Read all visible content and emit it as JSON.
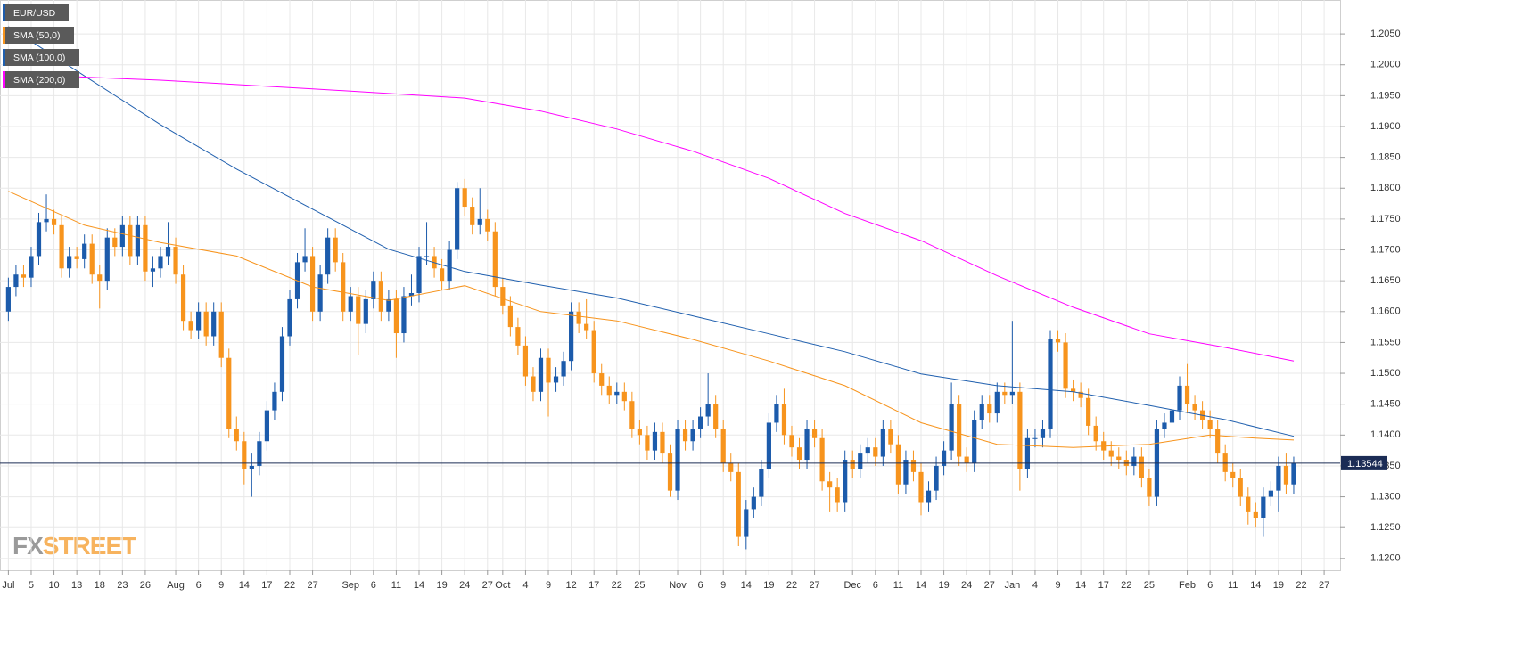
{
  "chart_data": {
    "type": "candlestick",
    "xlim": [
      -1.1,
      175.1
    ],
    "ylim": [
      1.1181,
      1.2105
    ],
    "grid": true,
    "legend": "top-left",
    "xticks": [
      {
        "value": 0,
        "label": "Jul"
      },
      {
        "value": 3,
        "label": "5"
      },
      {
        "value": 6,
        "label": "10"
      },
      {
        "value": 9,
        "label": "13"
      },
      {
        "value": 12,
        "label": "18"
      },
      {
        "value": 15,
        "label": "23"
      },
      {
        "value": 18,
        "label": "26"
      },
      {
        "value": 22,
        "label": "Aug"
      },
      {
        "value": 25,
        "label": "6"
      },
      {
        "value": 28,
        "label": "9"
      },
      {
        "value": 31,
        "label": "14"
      },
      {
        "value": 34,
        "label": "17"
      },
      {
        "value": 37,
        "label": "22"
      },
      {
        "value": 40,
        "label": "27"
      },
      {
        "value": 45,
        "label": "Sep"
      },
      {
        "value": 48,
        "label": "6"
      },
      {
        "value": 51,
        "label": "11"
      },
      {
        "value": 54,
        "label": "14"
      },
      {
        "value": 57,
        "label": "19"
      },
      {
        "value": 60,
        "label": "24"
      },
      {
        "value": 63,
        "label": "27"
      },
      {
        "value": 65,
        "label": "Oct"
      },
      {
        "value": 68,
        "label": "4"
      },
      {
        "value": 71,
        "label": "9"
      },
      {
        "value": 74,
        "label": "12"
      },
      {
        "value": 77,
        "label": "17"
      },
      {
        "value": 80,
        "label": "22"
      },
      {
        "value": 83,
        "label": "25"
      },
      {
        "value": 88,
        "label": "Nov"
      },
      {
        "value": 91,
        "label": "6"
      },
      {
        "value": 94,
        "label": "9"
      },
      {
        "value": 97,
        "label": "14"
      },
      {
        "value": 100,
        "label": "19"
      },
      {
        "value": 103,
        "label": "22"
      },
      {
        "value": 106,
        "label": "27"
      },
      {
        "value": 111,
        "label": "Dec"
      },
      {
        "value": 114,
        "label": "6"
      },
      {
        "value": 117,
        "label": "11"
      },
      {
        "value": 120,
        "label": "14"
      },
      {
        "value": 123,
        "label": "19"
      },
      {
        "value": 126,
        "label": "24"
      },
      {
        "value": 129,
        "label": "27"
      },
      {
        "value": 132,
        "label": "Jan"
      },
      {
        "value": 135,
        "label": "4"
      },
      {
        "value": 138,
        "label": "9"
      },
      {
        "value": 141,
        "label": "14"
      },
      {
        "value": 144,
        "label": "17"
      },
      {
        "value": 147,
        "label": "22"
      },
      {
        "value": 150,
        "label": "25"
      },
      {
        "value": 155,
        "label": "Feb"
      },
      {
        "value": 158,
        "label": "6"
      },
      {
        "value": 161,
        "label": "11"
      },
      {
        "value": 164,
        "label": "14"
      },
      {
        "value": 167,
        "label": "19"
      },
      {
        "value": 170,
        "label": "22"
      },
      {
        "value": 173,
        "label": "27"
      }
    ],
    "yticks": [
      {
        "value": 1.12,
        "label": "1.1200"
      },
      {
        "value": 1.125,
        "label": "1.1250"
      },
      {
        "value": 1.13,
        "label": "1.1300"
      },
      {
        "value": 1.135,
        "label": "1.1350"
      },
      {
        "value": 1.14,
        "label": "1.1400"
      },
      {
        "value": 1.145,
        "label": "1.1450"
      },
      {
        "value": 1.15,
        "label": "1.1500"
      },
      {
        "value": 1.155,
        "label": "1.1550"
      },
      {
        "value": 1.16,
        "label": "1.1600"
      },
      {
        "value": 1.165,
        "label": "1.1650"
      },
      {
        "value": 1.17,
        "label": "1.1700"
      },
      {
        "value": 1.175,
        "label": "1.1750"
      },
      {
        "value": 1.18,
        "label": "1.1800"
      },
      {
        "value": 1.185,
        "label": "1.1850"
      },
      {
        "value": 1.19,
        "label": "1.1900"
      },
      {
        "value": 1.195,
        "label": "1.1950"
      },
      {
        "value": 1.2,
        "label": "1.2000"
      },
      {
        "value": 1.205,
        "label": "1.2050"
      }
    ],
    "last_price": 1.13544,
    "watermark": [
      "FX",
      "STREET"
    ],
    "series": [
      {
        "name": "EUR/USD",
        "type": "candlestick",
        "up_color": "#1c5bab",
        "down_color": "#f7941d",
        "open": [
          1.16,
          1.164,
          1.166,
          1.1655,
          1.169,
          1.1745,
          1.175,
          1.174,
          1.167,
          1.169,
          1.1685,
          1.171,
          1.166,
          1.165,
          1.172,
          1.1705,
          1.174,
          1.169,
          1.174,
          1.1665,
          1.167,
          1.169,
          1.1705,
          1.166,
          1.1585,
          1.157,
          1.16,
          1.156,
          1.16,
          1.1525,
          1.141,
          1.139,
          1.1345,
          1.135,
          1.139,
          1.144,
          1.147,
          1.156,
          1.162,
          1.168,
          1.169,
          1.16,
          1.166,
          1.172,
          1.168,
          1.16,
          1.1625,
          1.158,
          1.162,
          1.165,
          1.16,
          1.162,
          1.1565,
          1.1625,
          1.163,
          1.169,
          1.169,
          1.167,
          1.165,
          1.17,
          1.18,
          1.177,
          1.174,
          1.175,
          1.173,
          1.164,
          1.161,
          1.1575,
          1.1545,
          1.1495,
          1.147,
          1.1525,
          1.1485,
          1.1495,
          1.152,
          1.16,
          1.158,
          1.157,
          1.15,
          1.148,
          1.1465,
          1.147,
          1.1455,
          1.141,
          1.14,
          1.1375,
          1.1405,
          1.137,
          1.131,
          1.141,
          1.139,
          1.141,
          1.143,
          1.145,
          1.141,
          1.1355,
          1.134,
          1.1235,
          1.128,
          1.13,
          1.1345,
          1.142,
          1.145,
          1.14,
          1.138,
          1.136,
          1.141,
          1.1395,
          1.1325,
          1.1315,
          1.129,
          1.136,
          1.1345,
          1.137,
          1.138,
          1.1365,
          1.141,
          1.1385,
          1.132,
          1.136,
          1.134,
          1.129,
          1.131,
          1.135,
          1.1375,
          1.145,
          1.1365,
          1.1355,
          1.1425,
          1.145,
          1.1435,
          1.147,
          1.1465,
          1.147,
          1.1345,
          1.1395,
          1.1395,
          1.141,
          1.1555,
          1.155,
          1.1475,
          1.147,
          1.146,
          1.1415,
          1.139,
          1.1375,
          1.1365,
          1.136,
          1.135,
          1.1365,
          1.133,
          1.13,
          1.141,
          1.142,
          1.144,
          1.148,
          1.145,
          1.144,
          1.1425,
          1.141,
          1.137,
          1.134,
          1.133,
          1.13,
          1.1275,
          1.1265,
          1.13,
          1.131,
          1.135,
          1.132
        ],
        "high": [
          1.1655,
          1.1675,
          1.1675,
          1.1705,
          1.176,
          1.179,
          1.1765,
          1.1755,
          1.1705,
          1.1705,
          1.1725,
          1.1725,
          1.1675,
          1.1735,
          1.1735,
          1.1755,
          1.1755,
          1.1755,
          1.1755,
          1.169,
          1.1705,
          1.1745,
          1.172,
          1.1675,
          1.16,
          1.1615,
          1.1615,
          1.1615,
          1.1615,
          1.154,
          1.143,
          1.1405,
          1.137,
          1.1405,
          1.1455,
          1.1485,
          1.1575,
          1.1635,
          1.1695,
          1.1735,
          1.1705,
          1.1675,
          1.1735,
          1.1735,
          1.1695,
          1.164,
          1.164,
          1.1635,
          1.1665,
          1.1665,
          1.1635,
          1.1635,
          1.164,
          1.166,
          1.1705,
          1.1745,
          1.1705,
          1.1685,
          1.1715,
          1.181,
          1.1815,
          1.1785,
          1.18,
          1.1765,
          1.1745,
          1.1655,
          1.1625,
          1.159,
          1.156,
          1.151,
          1.154,
          1.154,
          1.151,
          1.1535,
          1.1615,
          1.1615,
          1.162,
          1.1585,
          1.1515,
          1.1495,
          1.1485,
          1.1485,
          1.147,
          1.1425,
          1.1415,
          1.142,
          1.142,
          1.1385,
          1.1425,
          1.1425,
          1.1425,
          1.1445,
          1.15,
          1.1465,
          1.1425,
          1.137,
          1.1355,
          1.1295,
          1.1315,
          1.136,
          1.1435,
          1.1465,
          1.1475,
          1.1415,
          1.1395,
          1.1425,
          1.1425,
          1.141,
          1.134,
          1.133,
          1.1375,
          1.1375,
          1.1385,
          1.1395,
          1.1395,
          1.1425,
          1.1425,
          1.14,
          1.1375,
          1.1375,
          1.1355,
          1.1325,
          1.1365,
          1.139,
          1.1485,
          1.1465,
          1.138,
          1.144,
          1.1465,
          1.1465,
          1.1485,
          1.1485,
          1.1585,
          1.1485,
          1.141,
          1.141,
          1.1425,
          1.157,
          1.157,
          1.1565,
          1.149,
          1.1485,
          1.1475,
          1.143,
          1.1405,
          1.139,
          1.138,
          1.1375,
          1.138,
          1.138,
          1.1345,
          1.1425,
          1.1435,
          1.1455,
          1.1495,
          1.1515,
          1.1465,
          1.1455,
          1.144,
          1.1425,
          1.1385,
          1.1355,
          1.1345,
          1.1315,
          1.129,
          1.1315,
          1.1325,
          1.1365,
          1.137,
          1.1365
        ],
        "low": [
          1.1585,
          1.1625,
          1.164,
          1.164,
          1.1675,
          1.173,
          1.1725,
          1.1655,
          1.1655,
          1.167,
          1.167,
          1.1645,
          1.1605,
          1.1635,
          1.169,
          1.169,
          1.1675,
          1.1675,
          1.165,
          1.164,
          1.1655,
          1.1675,
          1.1645,
          1.157,
          1.1555,
          1.1555,
          1.1545,
          1.1545,
          1.151,
          1.1395,
          1.1375,
          1.132,
          1.13,
          1.1335,
          1.1375,
          1.1425,
          1.1455,
          1.1545,
          1.1605,
          1.1665,
          1.1585,
          1.1585,
          1.1645,
          1.1665,
          1.1585,
          1.1585,
          1.153,
          1.1565,
          1.1605,
          1.1585,
          1.1585,
          1.1525,
          1.155,
          1.161,
          1.1615,
          1.1675,
          1.1655,
          1.1635,
          1.1635,
          1.1685,
          1.1755,
          1.1725,
          1.1725,
          1.1715,
          1.1625,
          1.1595,
          1.156,
          1.153,
          1.148,
          1.1455,
          1.1455,
          1.143,
          1.147,
          1.148,
          1.1505,
          1.1565,
          1.1555,
          1.1485,
          1.1465,
          1.145,
          1.145,
          1.144,
          1.1395,
          1.1385,
          1.136,
          1.136,
          1.1355,
          1.13,
          1.1295,
          1.1375,
          1.1375,
          1.1395,
          1.1415,
          1.1395,
          1.134,
          1.1325,
          1.122,
          1.1215,
          1.1265,
          1.1285,
          1.133,
          1.1405,
          1.1385,
          1.1365,
          1.1345,
          1.1345,
          1.138,
          1.131,
          1.1275,
          1.1275,
          1.1275,
          1.133,
          1.133,
          1.1355,
          1.135,
          1.135,
          1.137,
          1.1305,
          1.1305,
          1.1325,
          1.127,
          1.1275,
          1.1295,
          1.1335,
          1.136,
          1.135,
          1.134,
          1.134,
          1.141,
          1.142,
          1.142,
          1.145,
          1.145,
          1.131,
          1.133,
          1.138,
          1.138,
          1.1395,
          1.1535,
          1.146,
          1.1455,
          1.1445,
          1.14,
          1.1375,
          1.136,
          1.135,
          1.1345,
          1.1335,
          1.1335,
          1.1315,
          1.1285,
          1.1285,
          1.1395,
          1.1405,
          1.1425,
          1.1435,
          1.1425,
          1.141,
          1.1395,
          1.1355,
          1.1325,
          1.1315,
          1.1285,
          1.1255,
          1.125,
          1.1235,
          1.1285,
          1.1275,
          1.1305,
          1.1305
        ],
        "close": [
          1.164,
          1.166,
          1.1655,
          1.169,
          1.1745,
          1.175,
          1.174,
          1.167,
          1.169,
          1.1685,
          1.171,
          1.166,
          1.165,
          1.172,
          1.1705,
          1.174,
          1.169,
          1.174,
          1.1665,
          1.167,
          1.169,
          1.1705,
          1.166,
          1.1585,
          1.157,
          1.16,
          1.156,
          1.16,
          1.1525,
          1.141,
          1.139,
          1.1345,
          1.135,
          1.139,
          1.144,
          1.147,
          1.156,
          1.162,
          1.168,
          1.169,
          1.16,
          1.166,
          1.172,
          1.168,
          1.16,
          1.1625,
          1.158,
          1.162,
          1.165,
          1.16,
          1.162,
          1.1565,
          1.1625,
          1.163,
          1.169,
          1.169,
          1.167,
          1.165,
          1.17,
          1.18,
          1.177,
          1.174,
          1.175,
          1.173,
          1.164,
          1.161,
          1.1575,
          1.1545,
          1.1495,
          1.147,
          1.1525,
          1.1485,
          1.1495,
          1.152,
          1.16,
          1.158,
          1.157,
          1.15,
          1.148,
          1.1465,
          1.147,
          1.1455,
          1.141,
          1.14,
          1.1375,
          1.1405,
          1.137,
          1.131,
          1.141,
          1.139,
          1.141,
          1.143,
          1.145,
          1.141,
          1.1355,
          1.134,
          1.1235,
          1.128,
          1.13,
          1.1345,
          1.142,
          1.145,
          1.14,
          1.138,
          1.136,
          1.141,
          1.1395,
          1.1325,
          1.1315,
          1.129,
          1.136,
          1.1345,
          1.137,
          1.138,
          1.1365,
          1.141,
          1.1385,
          1.132,
          1.136,
          1.134,
          1.129,
          1.131,
          1.135,
          1.1375,
          1.145,
          1.1365,
          1.1355,
          1.1425,
          1.145,
          1.1435,
          1.147,
          1.1465,
          1.147,
          1.1345,
          1.1395,
          1.1395,
          1.141,
          1.1555,
          1.155,
          1.1475,
          1.147,
          1.146,
          1.1415,
          1.139,
          1.1375,
          1.1365,
          1.136,
          1.135,
          1.1365,
          1.133,
          1.13,
          1.141,
          1.142,
          1.144,
          1.148,
          1.145,
          1.144,
          1.1425,
          1.141,
          1.137,
          1.134,
          1.133,
          1.13,
          1.1275,
          1.1265,
          1.13,
          1.131,
          1.135,
          1.132,
          1.13544
        ]
      },
      {
        "name": "SMA (50,0)",
        "type": "line",
        "color": "#f7941d",
        "x": [
          0,
          10,
          20,
          30,
          40,
          50,
          60,
          70,
          80,
          90,
          100,
          110,
          120,
          130,
          140,
          150,
          158,
          164,
          169
        ],
        "values": [
          1.1795,
          1.174,
          1.1712,
          1.169,
          1.164,
          1.1618,
          1.1642,
          1.16,
          1.1585,
          1.1555,
          1.152,
          1.148,
          1.142,
          1.1385,
          1.138,
          1.1385,
          1.14,
          1.1395,
          1.1392
        ]
      },
      {
        "name": "SMA (100,0)",
        "type": "line",
        "color": "#1f5fae",
        "x": [
          0,
          10,
          20,
          30,
          40,
          50,
          60,
          70,
          80,
          90,
          100,
          110,
          120,
          130,
          140,
          150,
          160,
          169
        ],
        "values": [
          1.2062,
          1.1982,
          1.1903,
          1.1831,
          1.1766,
          1.1701,
          1.1665,
          1.1643,
          1.1622,
          1.1593,
          1.1564,
          1.1535,
          1.1499,
          1.148,
          1.147,
          1.1448,
          1.1425,
          1.1398
        ]
      },
      {
        "name": "SMA (200,0)",
        "type": "line",
        "color": "#ff00ff",
        "x": [
          0,
          20,
          40,
          60,
          70,
          80,
          90,
          100,
          110,
          120,
          130,
          140,
          150,
          160,
          169
        ],
        "values": [
          1.1985,
          1.1975,
          1.1961,
          1.1946,
          1.1925,
          1.1896,
          1.186,
          1.1816,
          1.1759,
          1.1715,
          1.1658,
          1.1607,
          1.1564,
          1.1542,
          1.152
        ]
      }
    ]
  }
}
